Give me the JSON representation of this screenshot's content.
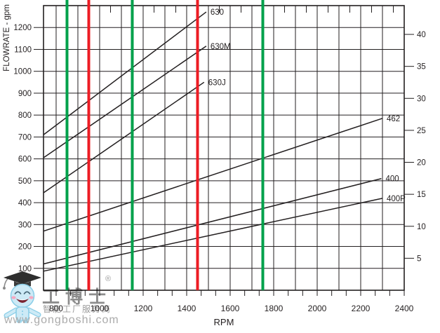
{
  "chart_data": {
    "type": "line",
    "title": "",
    "xlabel": "RPM",
    "ylabel": "FLOWRATE - gpm",
    "xlim": [
      742,
      2400
    ],
    "ylim_left": [
      0,
      1300
    ],
    "ylim_right": [
      0,
      44.5
    ],
    "x_tick_labels": [
      800,
      1000,
      1200,
      1400,
      1600,
      1800,
      2000,
      2200,
      2400
    ],
    "x_gridline_step": 100,
    "y_ticks_left": [
      100,
      200,
      300,
      400,
      500,
      600,
      700,
      800,
      900,
      1000,
      1100,
      1200
    ],
    "y_ticks_right": [
      5,
      10,
      15,
      20,
      25,
      30,
      35,
      40
    ],
    "grid": true,
    "series": [
      {
        "name": "630",
        "rpm": [
          742,
          1490
        ],
        "gpm": [
          710,
          1271
        ]
      },
      {
        "name": "630M",
        "rpm": [
          742,
          1490
        ],
        "gpm": [
          605,
          1115
        ]
      },
      {
        "name": "630J",
        "rpm": [
          742,
          1480
        ],
        "gpm": [
          445,
          950
        ]
      },
      {
        "name": "462",
        "rpm": [
          742,
          2300
        ],
        "gpm": [
          270,
          785
        ]
      },
      {
        "name": "400",
        "rpm": [
          742,
          2295
        ],
        "gpm": [
          120,
          510
        ]
      },
      {
        "name": "400P",
        "rpm": [
          742,
          2300
        ],
        "gpm": [
          87,
          420
        ]
      }
    ],
    "reference_lines": [
      {
        "rpm": 850,
        "color_key": "green"
      },
      {
        "rpm": 950,
        "color_key": "red"
      },
      {
        "rpm": 1150,
        "color_key": "green"
      },
      {
        "rpm": 1450,
        "color_key": "red"
      },
      {
        "rpm": 1750,
        "color_key": "green"
      }
    ],
    "legend_position": "none"
  },
  "colors": {
    "green_reference": "#00A14B",
    "red_reference": "#ED1C24",
    "axis_ink": "#231F20",
    "curve_ink": "#231F20",
    "watermark_gray": "#8D8D8D",
    "mascot_blue": "#CDEAF6",
    "mascot_blue_outline": "#8CCFE8"
  },
  "watermark": {
    "registered_mark": "®",
    "brand": "工博士",
    "tagline": "智能工厂服务商",
    "url": "www.gongboshi.com"
  }
}
